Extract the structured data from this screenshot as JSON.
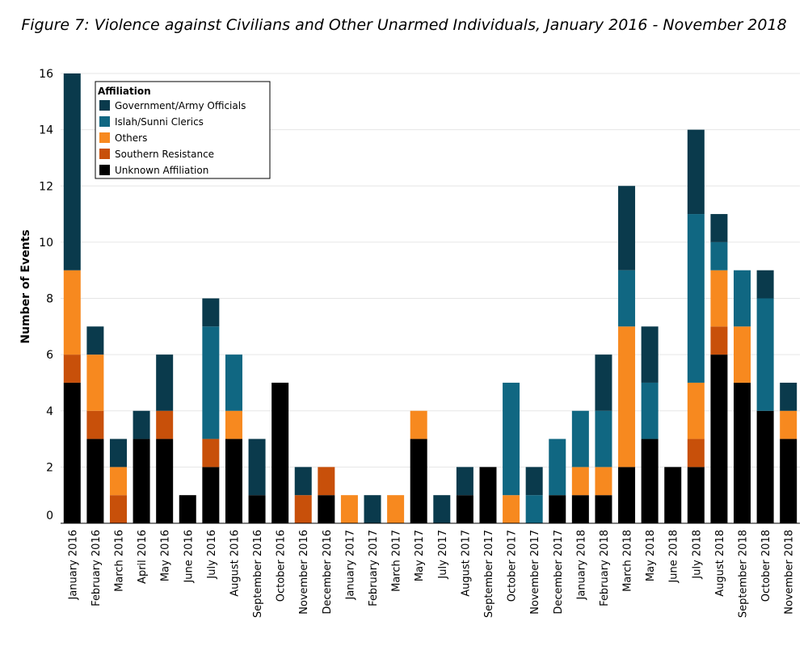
{
  "chart_data": {
    "type": "bar",
    "stacked": true,
    "title": "Figure 7: Violence against Civilians  and Other Unarmed Individuals, January 2016 - November 2018",
    "xlabel": "",
    "ylabel": "Number of Events",
    "ylim": [
      0,
      16
    ],
    "yticks": [
      0,
      2,
      4,
      6,
      8,
      10,
      12,
      14,
      16
    ],
    "grid": true,
    "legend_title": "Affiliation",
    "legend_position": "top-left",
    "categories": [
      "January 2016",
      "February 2016",
      "March 2016",
      "April 2016",
      "May 2016",
      "June 2016",
      "July 2016",
      "August 2016",
      "September 2016",
      "October 2016",
      "November 2016",
      "December 2016",
      "January 2017",
      "February 2017",
      "March 2017",
      "May 2017",
      "July 2017",
      "August 2017",
      "September 2017",
      "October 2017",
      "November 2017",
      "December 2017",
      "January 2018",
      "February 2018",
      "March 2018",
      "May 2018",
      "June 2018",
      "July 2018",
      "August 2018",
      "September 2018",
      "October 2018",
      "November 2018"
    ],
    "series": [
      {
        "name": "Unknown Affiliation",
        "color": "#000000",
        "values": [
          5,
          3,
          0,
          3,
          3,
          1,
          2,
          3,
          1,
          5,
          0,
          1,
          0,
          0,
          0,
          3,
          0,
          1,
          2,
          0,
          0,
          1,
          1,
          1,
          2,
          3,
          2,
          2,
          6,
          5,
          4,
          3
        ]
      },
      {
        "name": "Southern Resistance",
        "color": "#c8500a",
        "values": [
          1,
          1,
          1,
          0,
          1,
          0,
          1,
          0,
          0,
          0,
          1,
          1,
          0,
          0,
          0,
          0,
          0,
          0,
          0,
          0,
          0,
          0,
          0,
          0,
          0,
          0,
          0,
          1,
          1,
          0,
          0,
          0
        ]
      },
      {
        "name": "Others",
        "color": "#f7891f",
        "values": [
          3,
          2,
          1,
          0,
          0,
          0,
          0,
          1,
          0,
          0,
          0,
          0,
          1,
          0,
          1,
          1,
          0,
          0,
          0,
          1,
          0,
          0,
          1,
          1,
          5,
          0,
          0,
          2,
          2,
          2,
          0,
          1
        ]
      },
      {
        "name": "Islah/Sunni Clerics",
        "color": "#106782",
        "values": [
          0,
          0,
          0,
          0,
          0,
          0,
          4,
          2,
          0,
          0,
          0,
          0,
          0,
          0,
          0,
          0,
          0,
          0,
          0,
          4,
          1,
          2,
          2,
          2,
          2,
          2,
          0,
          6,
          1,
          2,
          4,
          0
        ]
      },
      {
        "name": "Government/Army Officials",
        "color": "#0a3a4c",
        "values": [
          7,
          1,
          1,
          1,
          2,
          0,
          1,
          0,
          2,
          0,
          1,
          0,
          0,
          1,
          0,
          0,
          1,
          1,
          0,
          0,
          1,
          0,
          0,
          2,
          3,
          2,
          0,
          3,
          1,
          0,
          1,
          1
        ]
      }
    ],
    "legend_order": [
      "Government/Army Officials",
      "Islah/Sunni Clerics",
      "Others",
      "Southern Resistance",
      "Unknown Affiliation"
    ]
  }
}
